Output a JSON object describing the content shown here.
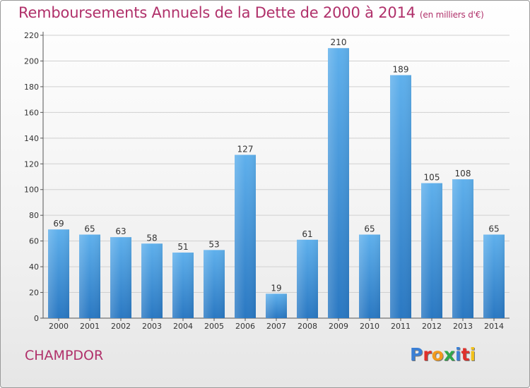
{
  "header": {
    "title": "Remboursements Annuels de la Dette de 2000 à 2014",
    "unit": "(en milliers d'€)"
  },
  "footer": {
    "place": "CHAMPDOR",
    "logo_letters": [
      "P",
      "r",
      "o",
      "x",
      "i",
      "t",
      "i"
    ]
  },
  "colors": {
    "title": "#b0306a",
    "bar": "#4a9fe0",
    "logo": [
      "#3a7fd5",
      "#e0302a",
      "#f29a1c",
      "#2ea84a",
      "#3a7fd5",
      "#e0302a",
      "#f2c21c"
    ]
  },
  "chart_data": {
    "type": "bar",
    "categories": [
      "2000",
      "2001",
      "2002",
      "2003",
      "2004",
      "2005",
      "2006",
      "2007",
      "2008",
      "2009",
      "2010",
      "2011",
      "2012",
      "2013",
      "2014"
    ],
    "values": [
      69,
      65,
      63,
      58,
      51,
      53,
      127,
      19,
      61,
      210,
      65,
      189,
      105,
      108,
      65
    ],
    "ylim": [
      0,
      220
    ],
    "yticks": [
      0,
      20,
      40,
      60,
      80,
      100,
      120,
      140,
      160,
      180,
      200,
      220
    ],
    "grid": true
  }
}
